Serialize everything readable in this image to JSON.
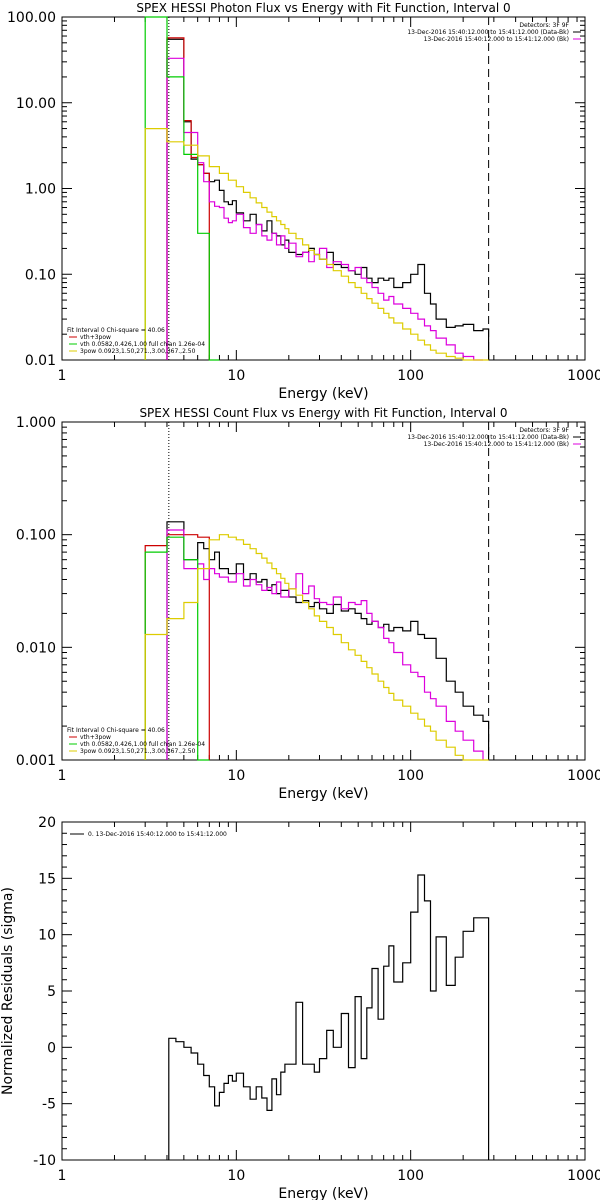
{
  "chart_data": [
    {
      "type": "line",
      "title": "SPEX HESSI Photon Flux vs Energy with Fit Function, Interval 0",
      "xlabel": "Energy (keV)",
      "ylabel": "",
      "xscale": "log",
      "yscale": "log",
      "xlim": [
        1,
        1000
      ],
      "ylim": [
        0.01,
        100
      ],
      "x_ticks": [
        "1",
        "10",
        "100",
        "1000"
      ],
      "y_ticks": [
        "0.01",
        "0.10",
        "1.00",
        "10.00",
        "100.00"
      ],
      "legend_right": [
        "Detectors: 3F 9F",
        "13-Dec-2016 15:40:12.000 to 15:41:12.000 (Data-Bk)",
        "13-Dec-2016 15:40:12.000 to 15:41:12.000 (Bk)"
      ],
      "legend_left": [
        "Fit Interval 0   Chi-square = 40.06",
        "vth+3pow",
        "vth 0.0582,0.426,1.00  full chian 1.26e-04",
        "3pow 0.0923,1.50,271.,3.00,367.,2.50"
      ],
      "vlines": [
        {
          "x": 4.1,
          "style": "dotted"
        },
        {
          "x": 280,
          "style": "dashed"
        }
      ],
      "series": [
        {
          "color": "#000000",
          "edges": [
            3,
            4,
            5,
            5.5,
            6,
            6.5,
            7,
            7.5,
            8,
            8.5,
            9,
            9.5,
            10,
            11,
            12,
            13,
            14,
            15,
            16,
            17,
            18,
            19,
            20,
            22,
            24,
            26,
            28,
            30,
            33,
            36,
            40,
            44,
            48,
            52,
            56,
            60,
            65,
            70,
            75,
            80,
            90,
            100,
            110,
            120,
            130,
            140,
            160,
            180,
            200,
            230,
            260,
            280
          ],
          "values": [
            null,
            55,
            6,
            2.2,
            1.9,
            1.5,
            1.2,
            1.25,
            0.95,
            0.7,
            0.65,
            0.72,
            0.52,
            0.42,
            0.5,
            0.38,
            0.32,
            0.42,
            0.3,
            0.28,
            0.22,
            0.25,
            0.18,
            0.17,
            0.18,
            0.2,
            0.17,
            0.15,
            0.18,
            0.13,
            0.12,
            0.11,
            0.1,
            0.12,
            0.09,
            0.08,
            0.09,
            0.085,
            0.09,
            0.07,
            0.08,
            0.1,
            0.13,
            0.06,
            0.045,
            0.03,
            0.024,
            0.025,
            0.026,
            0.022,
            0.023
          ]
        },
        {
          "color": "#cc0000",
          "edges": [
            4,
            5,
            5.5,
            6,
            6.5,
            7
          ],
          "values": [
            57,
            6.2,
            2.3,
            1.9,
            1.5
          ]
        },
        {
          "color": "#dd00dd",
          "edges": [
            4,
            5,
            6,
            6.5,
            7,
            7.5,
            8,
            8.5,
            9,
            9.5,
            10,
            11,
            12,
            13,
            14,
            15,
            16,
            17,
            18,
            19,
            20,
            22,
            24,
            26,
            28,
            30,
            33,
            36,
            40,
            44,
            48,
            52,
            56,
            60,
            65,
            70,
            75,
            80,
            90,
            100,
            110,
            120,
            130,
            140,
            160,
            180,
            200,
            230,
            260
          ],
          "values": [
            33,
            4.5,
            2.0,
            1.2,
            0.7,
            0.62,
            0.6,
            0.45,
            0.4,
            0.42,
            0.5,
            0.35,
            0.3,
            0.38,
            0.28,
            0.25,
            0.3,
            0.22,
            0.28,
            0.2,
            0.23,
            0.16,
            0.18,
            0.14,
            0.17,
            0.2,
            0.12,
            0.14,
            0.13,
            0.11,
            0.12,
            0.09,
            0.08,
            0.07,
            0.06,
            0.05,
            0.055,
            0.045,
            0.04,
            0.035,
            0.03,
            0.025,
            0.022,
            0.018,
            0.015,
            0.012,
            0.011,
            0.01
          ]
        },
        {
          "color": "#00cc00",
          "edges": [
            3,
            4,
            5,
            6,
            7,
            8
          ],
          "values": [
            100,
            20,
            2.5,
            0.3,
            0.01
          ]
        },
        {
          "color": "#ddcc00",
          "edges": [
            3,
            4,
            5,
            6,
            7,
            8,
            9,
            10,
            11,
            12,
            13,
            14,
            15,
            16,
            17,
            18,
            19,
            20,
            22,
            24,
            26,
            28,
            30,
            33,
            36,
            40,
            44,
            48,
            52,
            56,
            60,
            65,
            70,
            75,
            80,
            90,
            100,
            110,
            120,
            130,
            140,
            160,
            180,
            200,
            230,
            260,
            280
          ],
          "values": [
            5,
            3.5,
            3.2,
            2.4,
            1.8,
            1.5,
            1.25,
            1.05,
            0.9,
            0.78,
            0.68,
            0.6,
            0.53,
            0.47,
            0.42,
            0.38,
            0.34,
            0.3,
            0.26,
            0.22,
            0.19,
            0.17,
            0.15,
            0.13,
            0.11,
            0.095,
            0.08,
            0.07,
            0.06,
            0.052,
            0.046,
            0.04,
            0.035,
            0.031,
            0.027,
            0.023,
            0.02,
            0.017,
            0.015,
            0.013,
            0.012,
            0.011,
            0.0105,
            0.01,
            0.01,
            0.01
          ]
        }
      ]
    },
    {
      "type": "line",
      "title": "SPEX HESSI Count Flux vs Energy with Fit Function, Interval 0",
      "xlabel": "Energy (keV)",
      "ylabel": "",
      "xscale": "log",
      "yscale": "log",
      "xlim": [
        1,
        1000
      ],
      "ylim": [
        0.001,
        1
      ],
      "x_ticks": [
        "1",
        "10",
        "100",
        "1000"
      ],
      "y_ticks": [
        "0.001",
        "0.010",
        "0.100",
        "1.000"
      ],
      "legend_right": [
        "Detectors: 3F 9F",
        "13-Dec-2016 15:40:12.000 to 15:41:12.000 (Data-Bk)",
        "13-Dec-2016 15:40:12.000 to 15:41:12.000 (Bk)"
      ],
      "legend_left": [
        "Fit Interval 0   Chi-square = 40.06",
        "vth+3pow",
        "vth 0.0582,0.426,1.00  full chian 1.26e-04",
        "3pow 0.0923,1.50,271.,3.00,367.,2.50"
      ],
      "vlines": [
        {
          "x": 4.1,
          "style": "dotted"
        },
        {
          "x": 280,
          "style": "dashed"
        }
      ],
      "series": [
        {
          "color": "#cc0000",
          "edges": [
            3,
            4,
            5,
            6,
            7
          ],
          "values": [
            0.08,
            0.1,
            0.1,
            0.095
          ]
        },
        {
          "color": "#000000",
          "edges": [
            4,
            5,
            6,
            6.5,
            7,
            7.5,
            8,
            9,
            10,
            11,
            12,
            13,
            14,
            15,
            16,
            17,
            18,
            20,
            22,
            24,
            26,
            28,
            30,
            33,
            36,
            40,
            44,
            48,
            52,
            56,
            60,
            65,
            70,
            75,
            80,
            90,
            100,
            110,
            120,
            130,
            140,
            160,
            180,
            200,
            230,
            260,
            280
          ],
          "values": [
            0.13,
            0.06,
            0.085,
            0.075,
            0.06,
            0.07,
            0.05,
            0.045,
            0.055,
            0.04,
            0.045,
            0.038,
            0.04,
            0.032,
            0.036,
            0.03,
            0.032,
            0.028,
            0.025,
            0.026,
            0.023,
            0.025,
            0.022,
            0.02,
            0.024,
            0.021,
            0.022,
            0.02,
            0.018,
            0.016,
            0.017,
            0.015,
            0.016,
            0.014,
            0.015,
            0.014,
            0.017,
            0.013,
            0.012,
            0.012,
            0.008,
            0.005,
            0.004,
            0.003,
            0.0025,
            0.0022
          ]
        },
        {
          "color": "#dd00dd",
          "edges": [
            4,
            5,
            6,
            6.5,
            7,
            7.5,
            8,
            9,
            10,
            11,
            12,
            13,
            14,
            15,
            16,
            17,
            18,
            20,
            22,
            24,
            26,
            28,
            30,
            33,
            36,
            40,
            44,
            48,
            52,
            56,
            60,
            65,
            70,
            75,
            80,
            90,
            100,
            110,
            120,
            130,
            140,
            160,
            180,
            200,
            230,
            260
          ],
          "values": [
            0.11,
            0.05,
            0.055,
            0.04,
            0.05,
            0.045,
            0.042,
            0.038,
            0.045,
            0.035,
            0.04,
            0.036,
            0.032,
            0.034,
            0.03,
            0.038,
            0.028,
            0.033,
            0.045,
            0.03,
            0.035,
            0.027,
            0.025,
            0.024,
            0.028,
            0.022,
            0.025,
            0.024,
            0.026,
            0.02,
            0.017,
            0.015,
            0.012,
            0.011,
            0.009,
            0.007,
            0.006,
            0.0055,
            0.004,
            0.0035,
            0.003,
            0.0022,
            0.0018,
            0.0015,
            0.0012
          ]
        },
        {
          "color": "#00cc00",
          "edges": [
            3,
            4,
            5,
            6,
            7
          ],
          "values": [
            0.07,
            0.095,
            0.06,
            0.001
          ]
        },
        {
          "color": "#ddcc00",
          "edges": [
            3,
            4,
            5,
            6,
            7,
            8,
            9,
            10,
            11,
            12,
            13,
            14,
            15,
            16,
            17,
            18,
            19,
            20,
            22,
            24,
            26,
            28,
            30,
            33,
            36,
            40,
            44,
            48,
            52,
            56,
            60,
            65,
            70,
            75,
            80,
            90,
            100,
            110,
            120,
            130,
            140,
            160,
            180,
            200,
            230,
            260,
            280
          ],
          "values": [
            0.013,
            0.018,
            0.025,
            0.05,
            0.09,
            0.1,
            0.095,
            0.09,
            0.082,
            0.075,
            0.068,
            0.062,
            0.056,
            0.05,
            0.045,
            0.041,
            0.037,
            0.033,
            0.029,
            0.025,
            0.022,
            0.019,
            0.017,
            0.015,
            0.013,
            0.011,
            0.0095,
            0.0085,
            0.0075,
            0.0066,
            0.0058,
            0.005,
            0.0044,
            0.0039,
            0.0034,
            0.003,
            0.0026,
            0.0023,
            0.002,
            0.0018,
            0.0015,
            0.0013,
            0.0011,
            0.001,
            0.001,
            0.001
          ]
        }
      ]
    },
    {
      "type": "line",
      "title": "",
      "xlabel": "Energy (keV)",
      "ylabel": "Normalized Residuals (sigma)",
      "xscale": "log",
      "yscale": "linear",
      "xlim": [
        1,
        1000
      ],
      "ylim": [
        -10,
        20
      ],
      "x_ticks": [
        "1",
        "10",
        "100",
        "1000"
      ],
      "y_ticks": [
        "-10",
        "-5",
        "0",
        "5",
        "10",
        "15",
        "20"
      ],
      "legend_left": [
        "0. 13-Dec-2016 15:40:12.000 to 15:41:12.000"
      ],
      "series": [
        {
          "color": "#000000",
          "edges": [
            4.1,
            4.5,
            5,
            5.5,
            6,
            6.5,
            7,
            7.5,
            8,
            8.5,
            9,
            9.5,
            10,
            11,
            12,
            13,
            14,
            15,
            16,
            17,
            18,
            19,
            20,
            22,
            24,
            26,
            28,
            30,
            33,
            36,
            40,
            44,
            48,
            52,
            56,
            60,
            65,
            70,
            75,
            80,
            90,
            100,
            110,
            120,
            130,
            140,
            160,
            180,
            200,
            230,
            260,
            280
          ],
          "values": [
            0.8,
            0.5,
            0,
            -0.5,
            -1.5,
            -2.5,
            -3.5,
            -5.2,
            -4,
            -3.2,
            -2.5,
            -3,
            -2.3,
            -3.5,
            -4.6,
            -3.5,
            -4.5,
            -5.6,
            -2.8,
            -4.2,
            -2.2,
            -1.5,
            -1.5,
            4,
            -1.5,
            -1.5,
            -2.2,
            -1,
            1.5,
            0,
            3,
            -1.8,
            4.5,
            -1,
            3.5,
            7,
            2.5,
            7.2,
            9,
            5.8,
            7.5,
            12,
            15.3,
            13,
            5,
            9.8,
            5.5,
            8,
            10.3,
            11.5,
            11.5
          ]
        }
      ]
    }
  ]
}
